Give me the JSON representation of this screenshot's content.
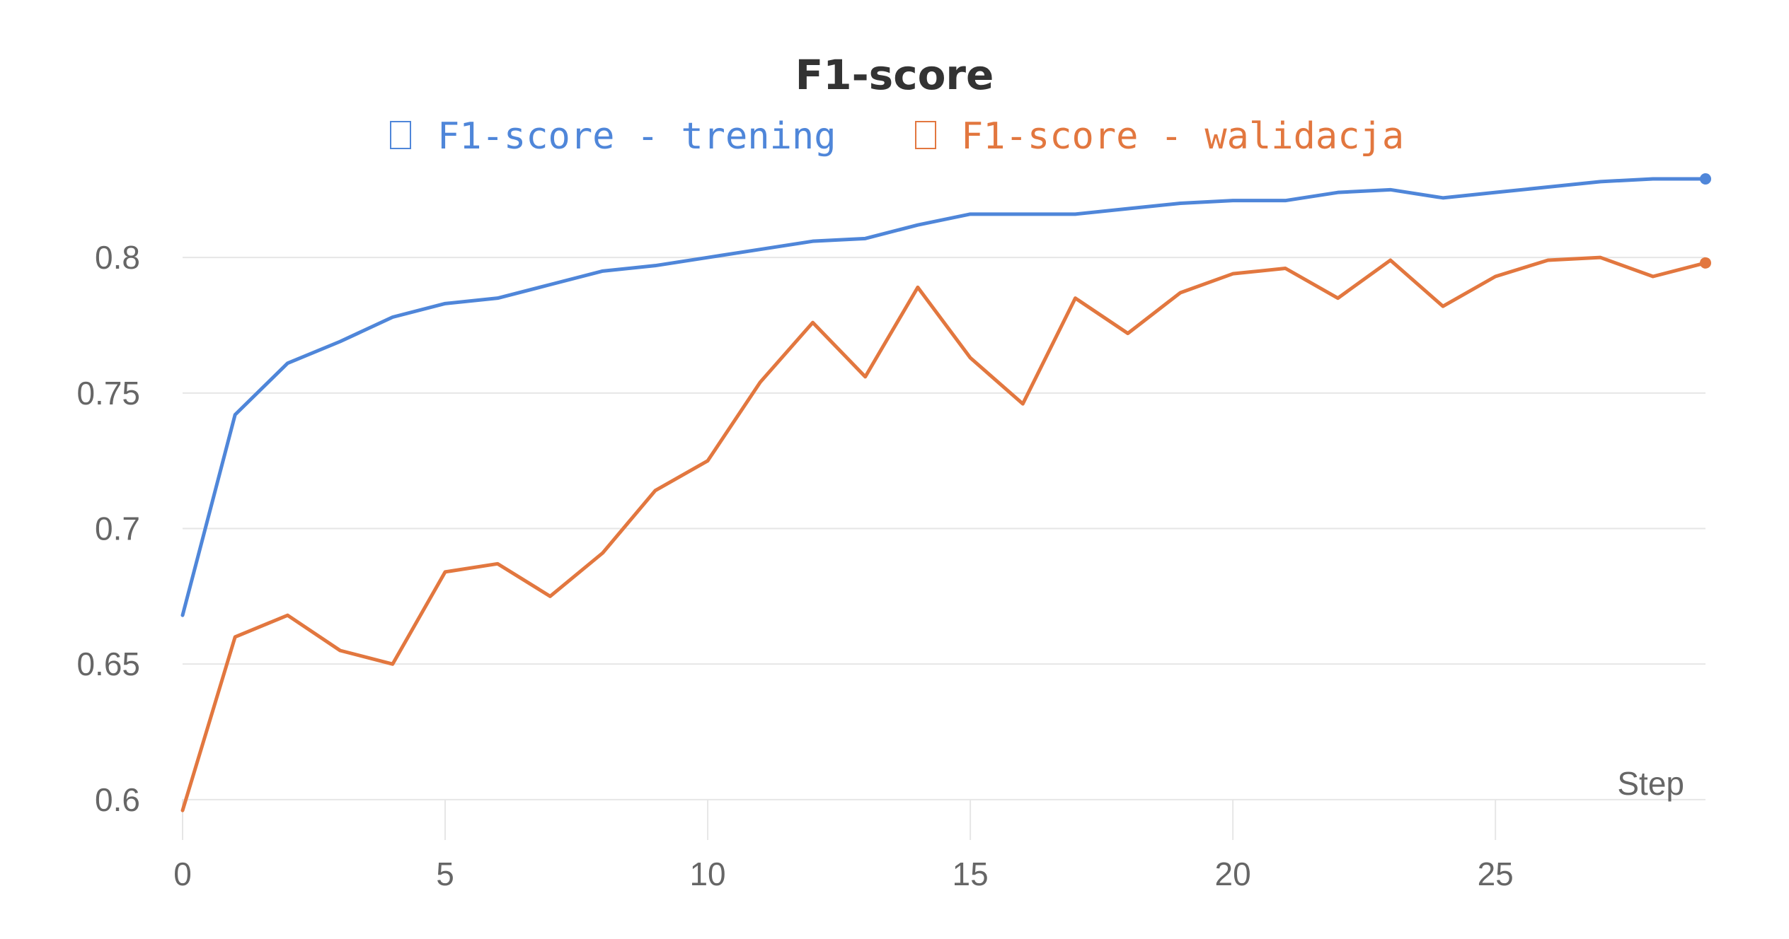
{
  "chart_data": {
    "type": "line",
    "title": "F1-score",
    "xlabel": "Step",
    "ylabel": "",
    "xlim": [
      0,
      29
    ],
    "ylim": [
      0.595,
      0.835
    ],
    "x_ticks": [
      0,
      5,
      10,
      15,
      20,
      25
    ],
    "y_ticks": [
      0.6,
      0.65,
      0.7,
      0.75,
      0.8
    ],
    "y_tick_labels": [
      "0.6",
      "0.65",
      "0.7",
      "0.75",
      "0.8"
    ],
    "grid": "horizontal",
    "legend_position": "top",
    "x": [
      0,
      1,
      2,
      3,
      4,
      5,
      6,
      7,
      8,
      9,
      10,
      11,
      12,
      13,
      14,
      15,
      16,
      17,
      18,
      19,
      20,
      21,
      22,
      23,
      24,
      25,
      26,
      27,
      28,
      29
    ],
    "series": [
      {
        "name": "F1-score - trening",
        "color": "#4f86d9",
        "values": [
          0.668,
          0.742,
          0.761,
          0.769,
          0.778,
          0.783,
          0.785,
          0.79,
          0.795,
          0.797,
          0.8,
          0.803,
          0.806,
          0.807,
          0.812,
          0.816,
          0.816,
          0.816,
          0.818,
          0.82,
          0.821,
          0.821,
          0.824,
          0.825,
          0.822,
          0.824,
          0.826,
          0.828,
          0.829,
          0.829
        ]
      },
      {
        "name": "F1-score - walidacja",
        "color": "#e2773f",
        "values": [
          0.596,
          0.66,
          0.668,
          0.655,
          0.65,
          0.684,
          0.687,
          0.675,
          0.691,
          0.714,
          0.725,
          0.754,
          0.776,
          0.756,
          0.789,
          0.763,
          0.746,
          0.785,
          0.772,
          0.787,
          0.794,
          0.796,
          0.785,
          0.799,
          0.782,
          0.793,
          0.799,
          0.8,
          0.793,
          0.798
        ]
      }
    ]
  }
}
